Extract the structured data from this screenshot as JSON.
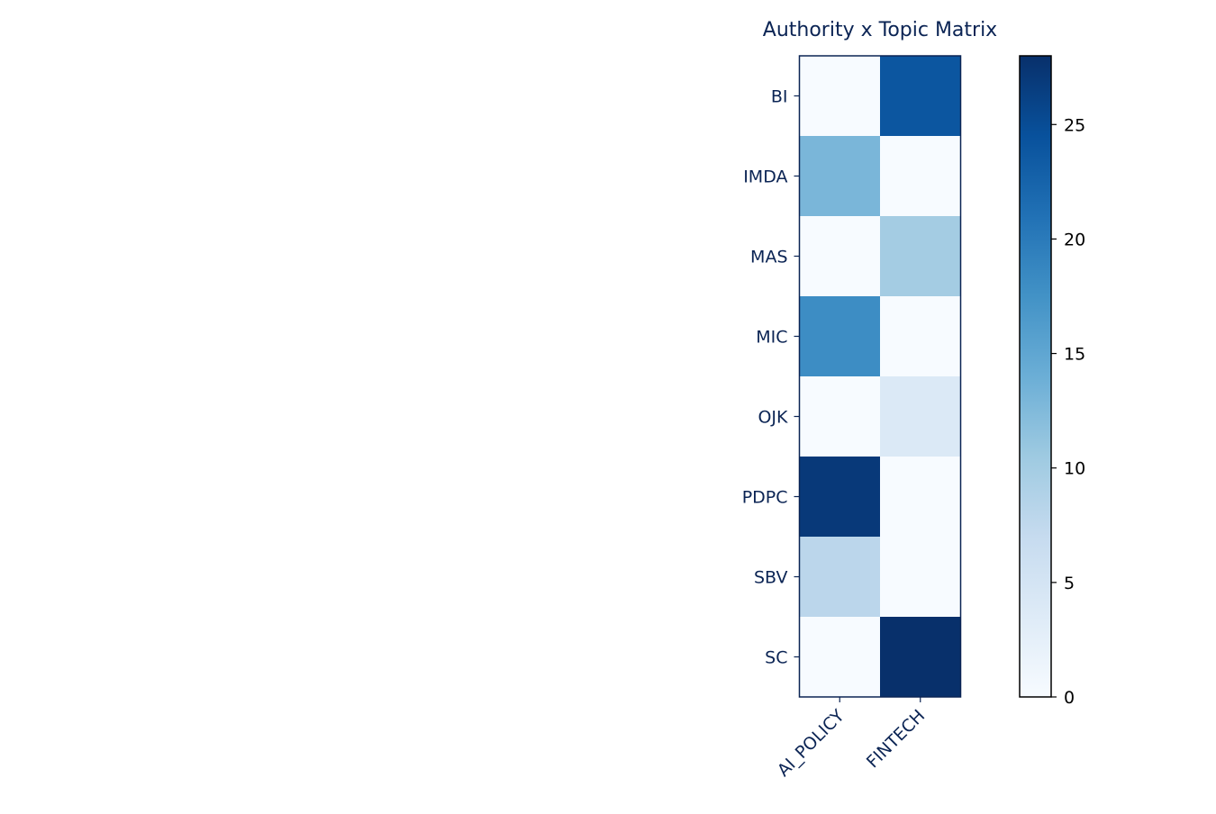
{
  "chart_data": {
    "type": "heatmap",
    "title": "Authority x Topic Matrix",
    "xlabel": "",
    "ylabel": "",
    "x_categories": [
      "AI_POLICY",
      "FINTECH"
    ],
    "y_categories": [
      "BI",
      "IMDA",
      "MAS",
      "MIC",
      "OJK",
      "PDPC",
      "SBV",
      "SC"
    ],
    "values": [
      [
        0,
        24
      ],
      [
        13,
        0
      ],
      [
        0,
        10
      ],
      [
        18,
        0
      ],
      [
        0,
        4
      ],
      [
        27,
        0
      ],
      [
        8,
        0
      ],
      [
        0,
        28
      ]
    ],
    "colormap": "Blues",
    "colorbar": {
      "range": [
        0,
        28
      ],
      "ticks": [
        0,
        5,
        10,
        15,
        20,
        25
      ]
    },
    "grid": false,
    "colors": {
      "text": "#0b2454",
      "frame": "#0b2454"
    }
  }
}
